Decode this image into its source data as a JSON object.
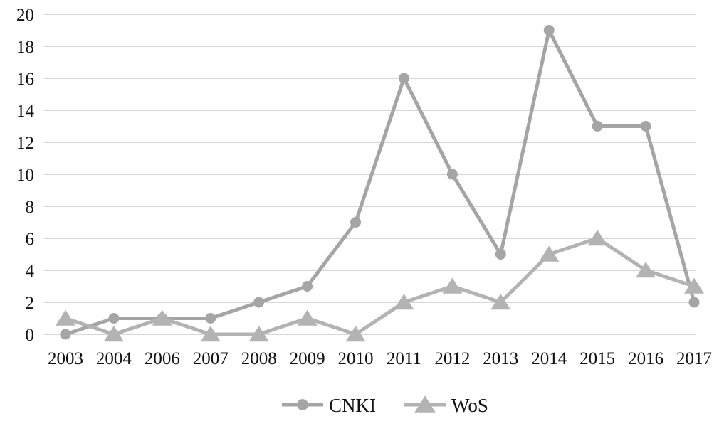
{
  "chart_data": {
    "type": "line",
    "title": "",
    "xlabel": "",
    "ylabel": "",
    "categories": [
      "2003",
      "2004",
      "2006",
      "2007",
      "2008",
      "2009",
      "2010",
      "2011",
      "2012",
      "2013",
      "2014",
      "2015",
      "2016",
      "2017"
    ],
    "ylim": [
      0,
      20
    ],
    "yticks": [
      0,
      2,
      4,
      6,
      8,
      10,
      12,
      14,
      16,
      18,
      20
    ],
    "grid": true,
    "legend_position": "bottom",
    "series": [
      {
        "name": "CNKI",
        "marker": "circle",
        "color": "#a5a5a5",
        "values": [
          0,
          1,
          1,
          1,
          2,
          3,
          7,
          16,
          10,
          5,
          19,
          13,
          13,
          2
        ]
      },
      {
        "name": "WoS",
        "marker": "triangle",
        "color": "#b3b3b3",
        "values": [
          1,
          0,
          1,
          0,
          0,
          1,
          0,
          2,
          3,
          2,
          5,
          6,
          4,
          3
        ]
      }
    ]
  }
}
